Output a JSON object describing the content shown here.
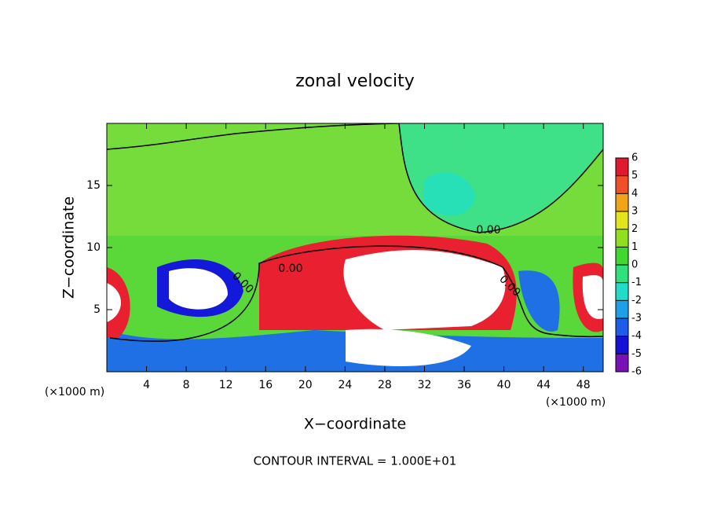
{
  "chart_data": {
    "type": "contour",
    "title": "zonal velocity",
    "x_label": "X−coordinate",
    "y_label": "Z−coordinate",
    "x_unit_labels": [
      "(×1000 m)",
      "(×1000 m)"
    ],
    "footer": "CONTOUR INTERVAL = 1.000E+01",
    "contour_labels": [
      "0.00",
      "0.00",
      "0.00",
      "0.00"
    ],
    "xlim": [
      0,
      50
    ],
    "xticks": [
      4,
      8,
      12,
      16,
      20,
      24,
      28,
      32,
      36,
      40,
      44,
      48
    ],
    "ylim": [
      0,
      20
    ],
    "yticks": [
      5,
      10,
      15
    ],
    "colorbar": {
      "levels": [
        -6,
        -5,
        -4,
        -3,
        -2,
        -1,
        0,
        1,
        2,
        3,
        4,
        5,
        6
      ],
      "colors": [
        "#7a10b8",
        "#1410d8",
        "#1c5ce8",
        "#1ea0e8",
        "#20dcc8",
        "#30e07c",
        "#40d830",
        "#90e020",
        "#e4e41c",
        "#f0a418",
        "#f05028",
        "#e01830",
        "#f4a0a0"
      ]
    }
  }
}
